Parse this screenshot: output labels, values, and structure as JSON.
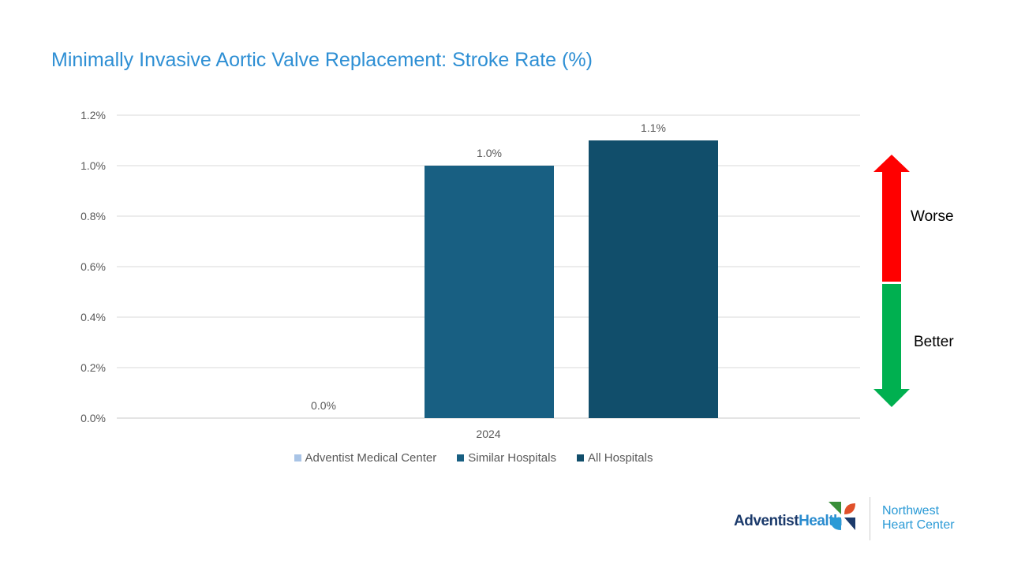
{
  "chart_data": {
    "type": "bar",
    "title": "Minimally Invasive Aortic Valve Replacement: Stroke Rate (%)",
    "categories": [
      "2024"
    ],
    "series": [
      {
        "name": "Adventist Medical Center",
        "values": [
          0.0
        ],
        "labels": [
          "0.0%"
        ],
        "color": "#a9c4e6"
      },
      {
        "name": "Similar Hospitals",
        "values": [
          1.0
        ],
        "labels": [
          "1.0%"
        ],
        "color": "#185f82"
      },
      {
        "name": "All Hospitals",
        "values": [
          1.1
        ],
        "labels": [
          "1.1%"
        ],
        "color": "#114e6b"
      }
    ],
    "yticks": [
      "0.0%",
      "0.2%",
      "0.4%",
      "0.6%",
      "0.8%",
      "1.0%",
      "1.2%"
    ],
    "ylim": [
      0,
      1.2
    ],
    "xlabel": "",
    "ylabel": "",
    "grid": true,
    "legend": "bottom"
  },
  "indicator": {
    "worse_label": "Worse",
    "better_label": "Better",
    "worse_color": "#ff0000",
    "better_color": "#00b050"
  },
  "logo": {
    "brand_dark": "Adventist",
    "brand_light": "Health",
    "sub_line1": "Northwest",
    "sub_line2": "Heart Center"
  }
}
